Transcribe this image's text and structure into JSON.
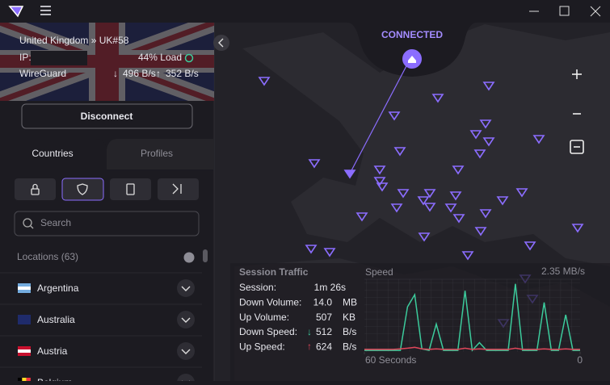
{
  "connection": {
    "server": "United Kingdom » UK#58",
    "ip_label": "IP:",
    "load": "44% Load",
    "protocol": "WireGuard",
    "down": "496 B/s",
    "up": "352 B/s",
    "disconnect": "Disconnect"
  },
  "tabs": [
    "Countries",
    "Profiles"
  ],
  "search_placeholder": "Search",
  "locations_header": "Locations (63)",
  "countries": [
    "Argentina",
    "Australia",
    "Austria",
    "Belgium"
  ],
  "status": "CONNECTED",
  "session": {
    "title": "Session Traffic",
    "rows": [
      {
        "label": "Session:",
        "value": "1m 26s"
      },
      {
        "label": "Down Volume:",
        "value": "14.0",
        "unit": "MB"
      },
      {
        "label": "Up Volume:",
        "value": "507",
        "unit": "KB"
      },
      {
        "label": "Down Speed:",
        "value": "512",
        "unit": "B/s"
      },
      {
        "label": "Up Speed:",
        "value": "624",
        "unit": "B/s"
      }
    ]
  },
  "chart_data": {
    "type": "line",
    "title": "Speed",
    "x": [
      60,
      58,
      56,
      54,
      52,
      50,
      48,
      46,
      44,
      42,
      40,
      38,
      36,
      34,
      32,
      30,
      28,
      26,
      24,
      22,
      20,
      18,
      16,
      14,
      12,
      10,
      8,
      6,
      4,
      2,
      0
    ],
    "series": [
      {
        "color": "#3ccb9c",
        "values": [
          0.05,
          0.05,
          0.05,
          0.05,
          0.05,
          0.05,
          1.46,
          1.85,
          0.1,
          0.05,
          0.9,
          0.05,
          0.05,
          0.05,
          1.98,
          0.05,
          0.3,
          0.05,
          0.05,
          0.05,
          0.05,
          2.2,
          0.05,
          0.05,
          0.05,
          1.6,
          0.05,
          0.05,
          1.2,
          0.05,
          0.05
        ]
      },
      {
        "color": "#e2465a",
        "values": [
          0.08,
          0.08,
          0.08,
          0.08,
          0.08,
          0.1,
          0.12,
          0.15,
          0.1,
          0.08,
          0.1,
          0.08,
          0.08,
          0.08,
          0.12,
          0.08,
          0.1,
          0.08,
          0.08,
          0.08,
          0.08,
          0.12,
          0.08,
          0.08,
          0.08,
          0.1,
          0.08,
          0.08,
          0.1,
          0.08,
          0.08
        ]
      }
    ],
    "xlim": [
      60,
      0
    ],
    "xticks": [
      {
        "value": 60,
        "label": "60 Seconds"
      },
      0
    ],
    "ylim": [
      0,
      2.35
    ],
    "yticks": [
      {
        "value": 2.35,
        "label": "2.35 MB/s"
      }
    ]
  }
}
